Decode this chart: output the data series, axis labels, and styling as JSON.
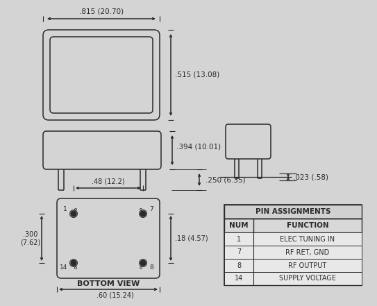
{
  "bg_color": "#d4d4d4",
  "line_color": "#2a2a2a",
  "text_color": "#2a2a2a",
  "pin_assignments": {
    "title": "PIN ASSIGNMENTS",
    "rows": [
      [
        "1",
        "ELEC TUNING IN"
      ],
      [
        "7",
        "RF RET, GND"
      ],
      [
        "8",
        "RF OUTPUT"
      ],
      [
        "14",
        "SUPPLY VOLTAGE"
      ]
    ]
  },
  "dims": {
    "top_width": ".815 (20.70)",
    "top_height": ".515 (13.08)",
    "side_height": ".394 (10.01)",
    "side_pin": ".250 (6.35)",
    "pin_width": ".023 (.58)",
    "bottom_span": ".48 (12.2)",
    "bottom_width": ".60 (15.24)",
    "bottom_height": ".300\n(7.62)",
    "bottom_pin_h": ".18 (4.57)"
  },
  "bottom_label": "BOTTOM VIEW"
}
